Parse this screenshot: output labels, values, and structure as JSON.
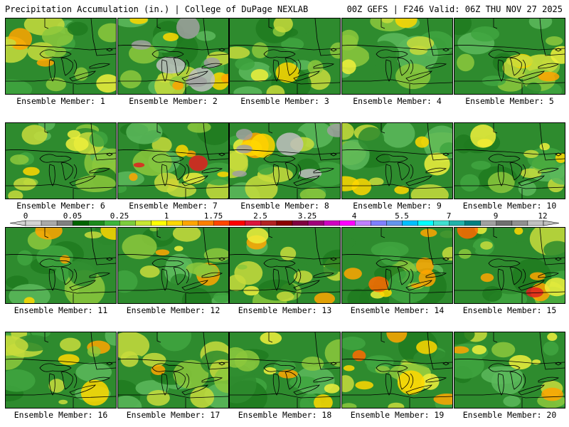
{
  "header": {
    "left": "Precipitation Accumulation (in.) | College of DuPage NEXLAB",
    "right": "00Z GEFS | F246 Valid: 06Z THU NOV 27 2025"
  },
  "members": [
    {
      "label": "Ensemble Member: 1"
    },
    {
      "label": "Ensemble Member: 2"
    },
    {
      "label": "Ensemble Member: 3"
    },
    {
      "label": "Ensemble Member: 4"
    },
    {
      "label": "Ensemble Member: 5"
    },
    {
      "label": "Ensemble Member: 6"
    },
    {
      "label": "Ensemble Member: 7"
    },
    {
      "label": "Ensemble Member: 8"
    },
    {
      "label": "Ensemble Member: 9"
    },
    {
      "label": "Ensemble Member: 10"
    },
    {
      "label": "Ensemble Member: 11"
    },
    {
      "label": "Ensemble Member: 12"
    },
    {
      "label": "Ensemble Member: 13"
    },
    {
      "label": "Ensemble Member: 14"
    },
    {
      "label": "Ensemble Member: 15"
    },
    {
      "label": "Ensemble Member: 16"
    },
    {
      "label": "Ensemble Member: 17"
    },
    {
      "label": "Ensemble Member: 18"
    },
    {
      "label": "Ensemble Member: 19"
    },
    {
      "label": "Ensemble Member: 20"
    }
  ],
  "colorbar": {
    "labels": [
      "0",
      "0.05",
      "0.25",
      "1",
      "1.75",
      "2.5",
      "3.25",
      "4",
      "5.5",
      "7",
      "9",
      "12"
    ],
    "colors": [
      "#d3d3d3",
      "#a9a9a9",
      "#808080",
      "#006400",
      "#1c8a1c",
      "#3cb43c",
      "#7ccd3c",
      "#c8e632",
      "#ffff00",
      "#ffd700",
      "#ffa500",
      "#ff7f00",
      "#ff4500",
      "#ff0000",
      "#dc143c",
      "#b22222",
      "#8b0000",
      "#800040",
      "#a0007a",
      "#d000c0",
      "#ff00ff",
      "#c080ff",
      "#8080ff",
      "#6495ed",
      "#00bfff",
      "#00ffff",
      "#40e0d0",
      "#20b2aa",
      "#008080",
      "#a0a0a0",
      "#707070",
      "#909090",
      "#c0c0c0"
    ]
  }
}
